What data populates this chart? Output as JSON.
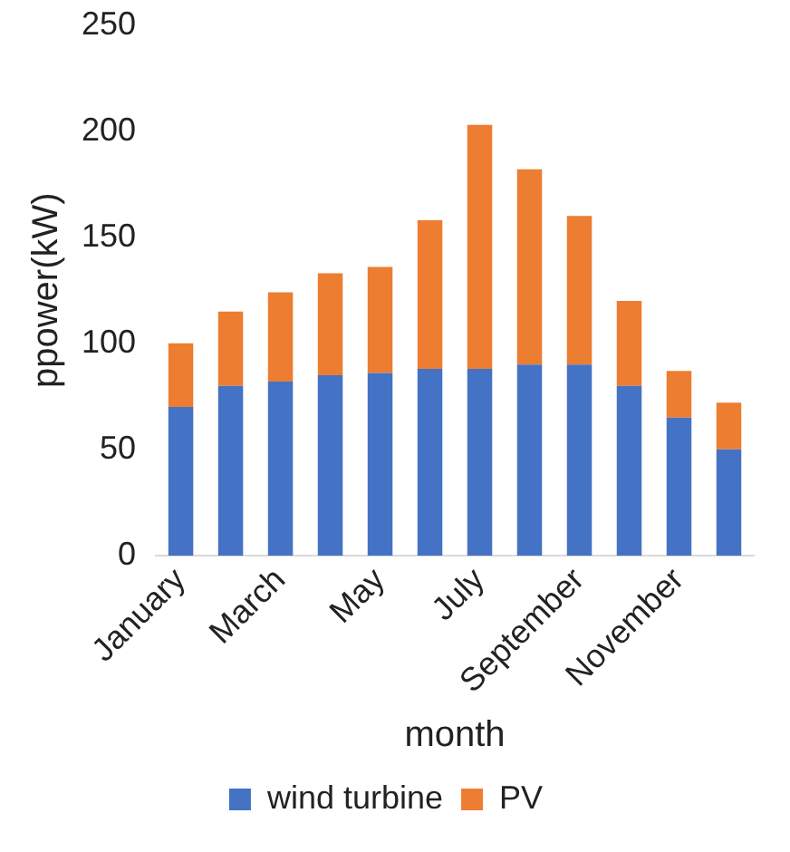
{
  "chart_data": {
    "type": "bar",
    "stacked": true,
    "xlabel": "month",
    "ylabel": "ppower(kW)",
    "categories": [
      "January",
      null,
      "March",
      null,
      "May",
      null,
      "July",
      null,
      "September",
      null,
      "November",
      null
    ],
    "series": [
      {
        "name": "wind turbine",
        "color": "#4472c4",
        "values": [
          70,
          80,
          82,
          85,
          86,
          88,
          88,
          90,
          90,
          80,
          65,
          50
        ]
      },
      {
        "name": "PV",
        "color": "#ed7d31",
        "values": [
          30,
          35,
          42,
          48,
          50,
          70,
          115,
          92,
          70,
          40,
          22,
          22
        ]
      }
    ],
    "ylim": [
      0,
      250
    ],
    "yticks": [
      0,
      50,
      100,
      150,
      200,
      250
    ],
    "grid": false,
    "legend": "bottom"
  }
}
